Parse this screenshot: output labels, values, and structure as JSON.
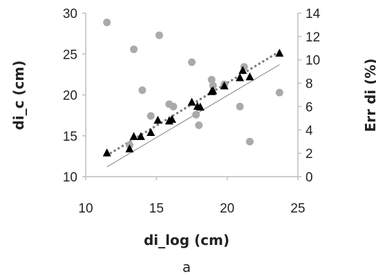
{
  "chart_data": {
    "type": "scatter",
    "panel_label": "a",
    "xlabel": "di_log (cm)",
    "ylabel": "di_c (cm)",
    "y2label": "Err di (%)",
    "xlim": [
      10,
      25
    ],
    "ylim": [
      10,
      30
    ],
    "y2lim": [
      0,
      14
    ],
    "xticks": [
      "10",
      "15",
      "20",
      "25"
    ],
    "yticks": [
      "10",
      "15",
      "20",
      "25",
      "30"
    ],
    "y2ticks": [
      "0",
      "2",
      "4",
      "6",
      "8",
      "10",
      "12",
      "14"
    ],
    "grid": false,
    "colors": {
      "series_di_c": "#000000",
      "series_err": "#aaaaaa",
      "trend_dotted": "#808080",
      "identity_line": "#808080",
      "axis": "#bdbdbd"
    },
    "series": [
      {
        "axis": "left",
        "marker": "triangle",
        "points": [
          [
            11.5,
            12.9
          ],
          [
            13.1,
            13.4
          ],
          [
            13.4,
            14.9
          ],
          [
            13.9,
            14.9
          ],
          [
            14.6,
            15.4
          ],
          [
            15.1,
            16.9
          ],
          [
            15.9,
            16.8
          ],
          [
            16.1,
            17.0
          ],
          [
            17.5,
            19.1
          ],
          [
            17.9,
            18.6
          ],
          [
            18.1,
            18.5
          ],
          [
            18.9,
            20.4
          ],
          [
            19.0,
            20.5
          ],
          [
            19.8,
            21.1
          ],
          [
            20.9,
            22.1
          ],
          [
            21.1,
            23.0
          ],
          [
            21.6,
            22.2
          ],
          [
            23.7,
            25.1
          ]
        ]
      },
      {
        "axis": "right",
        "marker": "circle",
        "points": [
          [
            11.5,
            13.2
          ],
          [
            13.1,
            2.7
          ],
          [
            13.4,
            10.9
          ],
          [
            14.0,
            7.4
          ],
          [
            14.6,
            5.2
          ],
          [
            15.2,
            12.1
          ],
          [
            15.9,
            6.2
          ],
          [
            16.2,
            6.0
          ],
          [
            17.5,
            9.8
          ],
          [
            17.8,
            5.3
          ],
          [
            18.0,
            4.4
          ],
          [
            18.9,
            8.3
          ],
          [
            19.0,
            7.8
          ],
          [
            19.8,
            7.9
          ],
          [
            20.9,
            6.0
          ],
          [
            21.2,
            9.4
          ],
          [
            21.6,
            3.0
          ],
          [
            23.7,
            7.2
          ]
        ]
      }
    ],
    "trendline": {
      "axis": "left",
      "style": "dotted",
      "from": [
        11.5,
        12.6
      ],
      "to": [
        23.7,
        25.3
      ]
    },
    "identity_line": {
      "axis": "left",
      "style": "solid",
      "from": [
        11.5,
        11.2
      ],
      "to": [
        23.7,
        23.7
      ]
    }
  }
}
